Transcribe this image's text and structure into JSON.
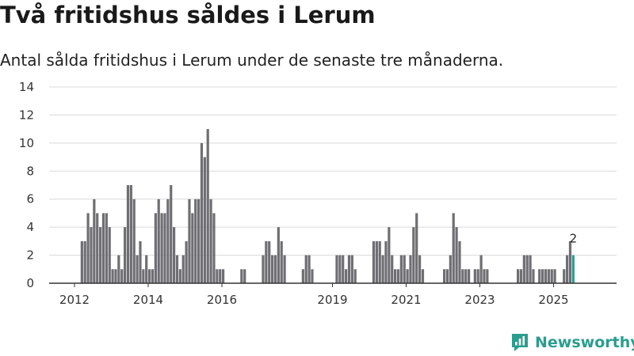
{
  "header": {
    "title": "Två fritidshus såldes i Lerum",
    "subtitle": "Antal sålda fritidshus i Lerum under de senaste tre månaderna."
  },
  "brand": {
    "name": "Newsworthy",
    "icon": "newsworthy-logo-icon",
    "color": "#2a9d8f"
  },
  "colors": {
    "bar": "#6e6e73",
    "highlight": "#2a9d8f",
    "grid": "#d9d9d9",
    "axis": "#333333"
  },
  "chart_data": {
    "type": "bar",
    "title": "",
    "xlabel": "",
    "ylabel": "",
    "ylim": [
      0,
      14
    ],
    "yticks": [
      "0",
      "2",
      "4",
      "6",
      "8",
      "10",
      "12",
      "14"
    ],
    "xticks": [
      "2012",
      "2014",
      "2016",
      "2019",
      "2021",
      "2023",
      "2025"
    ],
    "grid": true,
    "start": "2012-01",
    "frequency": "monthly",
    "values": [
      0,
      0,
      3,
      3,
      5,
      4,
      6,
      5,
      4,
      5,
      5,
      4,
      1,
      1,
      2,
      1,
      4,
      7,
      7,
      6,
      2,
      3,
      1,
      2,
      1,
      1,
      5,
      6,
      5,
      5,
      6,
      7,
      4,
      2,
      1,
      2,
      3,
      6,
      5,
      6,
      6,
      10,
      9,
      11,
      6,
      5,
      1,
      1,
      1,
      0,
      0,
      0,
      0,
      0,
      1,
      1,
      0,
      0,
      0,
      0,
      0,
      2,
      3,
      3,
      2,
      2,
      4,
      3,
      2,
      0,
      0,
      0,
      0,
      0,
      1,
      2,
      2,
      1,
      0,
      0,
      0,
      0,
      0,
      0,
      0,
      2,
      2,
      2,
      1,
      2,
      2,
      1,
      0,
      0,
      0,
      0,
      0,
      3,
      3,
      3,
      2,
      3,
      4,
      2,
      1,
      1,
      2,
      2,
      1,
      2,
      4,
      5,
      2,
      1,
      0,
      0,
      0,
      0,
      0,
      0,
      1,
      1,
      2,
      5,
      4,
      3,
      1,
      1,
      1,
      0,
      1,
      1,
      2,
      1,
      1,
      0,
      0,
      0,
      0,
      0,
      0,
      0,
      0,
      0,
      1,
      1,
      2,
      2,
      2,
      1,
      0,
      1,
      1,
      1,
      1,
      1,
      1,
      0,
      0,
      1,
      2,
      3,
      2
    ],
    "highlight": {
      "label": "2",
      "value": 2,
      "color": "#2a9d8f"
    }
  }
}
